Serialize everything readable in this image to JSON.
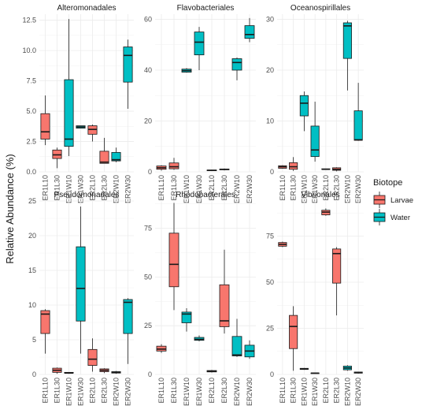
{
  "figure": {
    "ylabel": "Relative Abundance (%)",
    "legend_title": "Biotope",
    "legend_placement": "right",
    "groups": [
      {
        "name": "Larvae",
        "color": "#f8766d"
      },
      {
        "name": "Water",
        "color": "#00bfc4"
      }
    ]
  },
  "chart_data": [
    {
      "type": "boxplot",
      "title": "Alteromonadales",
      "categories": [
        "ER1L10",
        "ER1L30",
        "ER1W10",
        "ER1W30",
        "ER2L10",
        "ER2L30",
        "ER2W10",
        "ER2W30"
      ],
      "biotope": [
        "Larvae",
        "Larvae",
        "Water",
        "Water",
        "Larvae",
        "Larvae",
        "Water",
        "Water"
      ],
      "ylim": [
        0,
        13
      ],
      "yticks": [
        0.0,
        2.5,
        5.0,
        7.5,
        10.0,
        12.5
      ],
      "ytick_labels": [
        "0.0",
        "2.5",
        "5.0",
        "7.5",
        "10.0",
        "12.5"
      ],
      "boxes": [
        {
          "min": 2.2,
          "q1": 2.7,
          "median": 3.3,
          "q3": 4.8,
          "max": 6.3
        },
        {
          "min": 0.3,
          "q1": 1.1,
          "median": 1.4,
          "q3": 1.8,
          "max": 2.0
        },
        {
          "min": 1.3,
          "q1": 2.1,
          "median": 2.7,
          "q3": 7.6,
          "max": 12.6
        },
        {
          "min": 3.6,
          "q1": 3.6,
          "median": 3.7,
          "q3": 3.8,
          "max": 3.8
        },
        {
          "min": 2.5,
          "q1": 3.1,
          "median": 3.5,
          "q3": 3.8,
          "max": 3.9
        },
        {
          "min": 0.7,
          "q1": 0.7,
          "median": 0.8,
          "q3": 1.7,
          "max": 2.8
        },
        {
          "min": 0.8,
          "q1": 0.9,
          "median": 1.0,
          "q3": 1.6,
          "max": 2.0
        },
        {
          "min": 5.2,
          "q1": 7.4,
          "median": 9.6,
          "q3": 10.3,
          "max": 10.9
        }
      ]
    },
    {
      "type": "boxplot",
      "title": "Flavobacteriales",
      "categories": [
        "ER1L10",
        "ER1L30",
        "ER1W10",
        "ER1W30",
        "ER2L10",
        "ER2L30",
        "ER2W10",
        "ER2W30"
      ],
      "biotope": [
        "Larvae",
        "Larvae",
        "Water",
        "Water",
        "Larvae",
        "Larvae",
        "Water",
        "Water"
      ],
      "ylim": [
        0,
        62
      ],
      "yticks": [
        0,
        20,
        40,
        60
      ],
      "ytick_labels": [
        "0",
        "20",
        "40",
        "60"
      ],
      "boxes": [
        {
          "min": 0.5,
          "q1": 1.0,
          "median": 1.6,
          "q3": 2.3,
          "max": 2.6
        },
        {
          "min": 0.8,
          "q1": 1.2,
          "median": 2.0,
          "q3": 3.5,
          "max": 5.5
        },
        {
          "min": 39.0,
          "q1": 39.2,
          "median": 39.8,
          "q3": 40.4,
          "max": 40.8
        },
        {
          "min": 40.0,
          "q1": 46.0,
          "median": 51.0,
          "q3": 55.0,
          "max": 57.0
        },
        {
          "min": 0.4,
          "q1": 0.5,
          "median": 0.6,
          "q3": 0.7,
          "max": 0.8
        },
        {
          "min": 0.6,
          "q1": 0.8,
          "median": 1.0,
          "q3": 1.1,
          "max": 1.3
        },
        {
          "min": 36.0,
          "q1": 40.0,
          "median": 43.0,
          "q3": 44.5,
          "max": 45.0
        },
        {
          "min": 51.0,
          "q1": 52.5,
          "median": 54.0,
          "q3": 57.5,
          "max": 60.5
        }
      ]
    },
    {
      "type": "boxplot",
      "title": "Oceanospirillales",
      "categories": [
        "ER1L10",
        "ER1L30",
        "ER1W10",
        "ER1W30",
        "ER2L10",
        "ER2L30",
        "ER2W10",
        "ER2W30"
      ],
      "biotope": [
        "Larvae",
        "Larvae",
        "Water",
        "Water",
        "Larvae",
        "Larvae",
        "Water",
        "Water"
      ],
      "ylim": [
        0,
        31
      ],
      "yticks": [
        0,
        10,
        20,
        30
      ],
      "ytick_labels": [
        "0",
        "10",
        "20",
        "30"
      ],
      "boxes": [
        {
          "min": 0.6,
          "q1": 0.7,
          "median": 1.0,
          "q3": 1.2,
          "max": 1.3
        },
        {
          "min": 0.2,
          "q1": 0.5,
          "median": 1.0,
          "q3": 1.8,
          "max": 2.9
        },
        {
          "min": 8.0,
          "q1": 11.0,
          "median": 13.5,
          "q3": 15.0,
          "max": 15.8
        },
        {
          "min": 2.0,
          "q1": 3.0,
          "median": 4.3,
          "q3": 9.0,
          "max": 13.8
        },
        {
          "min": 0.4,
          "q1": 0.5,
          "median": 0.5,
          "q3": 0.6,
          "max": 0.6
        },
        {
          "min": 0.1,
          "q1": 0.3,
          "median": 0.5,
          "q3": 0.8,
          "max": 0.9
        },
        {
          "min": 16.0,
          "q1": 22.3,
          "median": 28.7,
          "q3": 29.3,
          "max": 29.7
        },
        {
          "min": 6.1,
          "q1": 6.2,
          "median": 6.3,
          "q3": 12.0,
          "max": 17.5
        }
      ]
    },
    {
      "type": "boxplot",
      "title": "Pseudomonadales",
      "categories": [
        "ER1L10",
        "ER1L30",
        "ER1W10",
        "ER1W30",
        "ER2L10",
        "ER2L30",
        "ER2W10",
        "ER2W30"
      ],
      "biotope": [
        "Larvae",
        "Larvae",
        "Water",
        "Water",
        "Larvae",
        "Larvae",
        "Water",
        "Water"
      ],
      "ylim": [
        0,
        25
      ],
      "yticks": [
        0,
        5,
        10,
        15,
        20,
        25
      ],
      "ytick_labels": [
        "0",
        "5",
        "10",
        "15",
        "20",
        "25"
      ],
      "boxes": [
        {
          "min": 3.0,
          "q1": 5.9,
          "median": 8.7,
          "q3": 9.2,
          "max": 9.4
        },
        {
          "min": 0.1,
          "q1": 0.3,
          "median": 0.6,
          "q3": 0.9,
          "max": 1.0
        },
        {
          "min": 0.1,
          "q1": 0.2,
          "median": 0.2,
          "q3": 0.3,
          "max": 0.3
        },
        {
          "min": 3.0,
          "q1": 7.7,
          "median": 12.4,
          "q3": 18.4,
          "max": 24.2
        },
        {
          "min": 0.4,
          "q1": 1.3,
          "median": 2.2,
          "q3": 3.6,
          "max": 5.2
        },
        {
          "min": 0.2,
          "q1": 0.4,
          "median": 0.6,
          "q3": 0.8,
          "max": 0.9
        },
        {
          "min": 0.1,
          "q1": 0.2,
          "median": 0.3,
          "q3": 0.4,
          "max": 0.5
        },
        {
          "min": 1.5,
          "q1": 5.9,
          "median": 10.4,
          "q3": 10.8,
          "max": 11.0
        }
      ]
    },
    {
      "type": "boxplot",
      "title": "Rhodobacterales",
      "categories": [
        "ER1L10",
        "ER1L30",
        "ER1W10",
        "ER1W30",
        "ER2L10",
        "ER2L30",
        "ER2W10",
        "ER2W30"
      ],
      "biotope": [
        "Larvae",
        "Larvae",
        "Water",
        "Water",
        "Larvae",
        "Larvae",
        "Water",
        "Water"
      ],
      "ylim": [
        0,
        89
      ],
      "yticks": [
        0,
        25,
        50,
        75
      ],
      "ytick_labels": [
        "0",
        "25",
        "50",
        "75"
      ],
      "boxes": [
        {
          "min": 11.0,
          "q1": 12.0,
          "median": 13.0,
          "q3": 14.5,
          "max": 15.5
        },
        {
          "min": 33.0,
          "q1": 45.0,
          "median": 56.5,
          "q3": 72.5,
          "max": 88.0
        },
        {
          "min": 22.0,
          "q1": 26.5,
          "median": 31.0,
          "q3": 32.0,
          "max": 34.0
        },
        {
          "min": 17.0,
          "q1": 17.5,
          "median": 18.0,
          "q3": 19.0,
          "max": 20.0
        },
        {
          "min": 1.0,
          "q1": 1.3,
          "median": 1.6,
          "q3": 2.0,
          "max": 2.3
        },
        {
          "min": 21.0,
          "q1": 24.5,
          "median": 27.5,
          "q3": 46.0,
          "max": 64.0
        },
        {
          "min": 9.0,
          "q1": 9.5,
          "median": 10.0,
          "q3": 19.5,
          "max": 28.5
        },
        {
          "min": 8.0,
          "q1": 9.0,
          "median": 12.0,
          "q3": 15.0,
          "max": 17.5
        }
      ]
    },
    {
      "type": "boxplot",
      "title": "Vibrionales",
      "categories": [
        "ER1L10",
        "ER1L30",
        "ER1W10",
        "ER1W30",
        "ER2L10",
        "ER2L30",
        "ER2W10",
        "ER2W30"
      ],
      "biotope": [
        "Larvae",
        "Larvae",
        "Water",
        "Water",
        "Larvae",
        "Larvae",
        "Water",
        "Water"
      ],
      "ylim": [
        0,
        94
      ],
      "yticks": [
        0,
        25,
        50,
        75
      ],
      "ytick_labels": [
        "0",
        "25",
        "50",
        "75"
      ],
      "boxes": [
        {
          "min": 69.0,
          "q1": 69.5,
          "median": 70.5,
          "q3": 71.5,
          "max": 72.0
        },
        {
          "min": 2.0,
          "q1": 14.0,
          "median": 26.0,
          "q3": 32.0,
          "max": 37.0
        },
        {
          "min": 2.5,
          "q1": 2.7,
          "median": 3.0,
          "q3": 3.3,
          "max": 3.5
        },
        {
          "min": 0.5,
          "q1": 0.6,
          "median": 0.7,
          "q3": 0.8,
          "max": 0.9
        },
        {
          "min": 86.0,
          "q1": 86.5,
          "median": 88.0,
          "q3": 89.0,
          "max": 90.0
        },
        {
          "min": 32.0,
          "q1": 49.5,
          "median": 65.5,
          "q3": 68.0,
          "max": 69.0
        },
        {
          "min": 2.0,
          "q1": 2.5,
          "median": 3.5,
          "q3": 4.5,
          "max": 5.0
        },
        {
          "min": 0.5,
          "q1": 0.7,
          "median": 1.0,
          "q3": 1.3,
          "max": 1.5
        }
      ]
    }
  ]
}
